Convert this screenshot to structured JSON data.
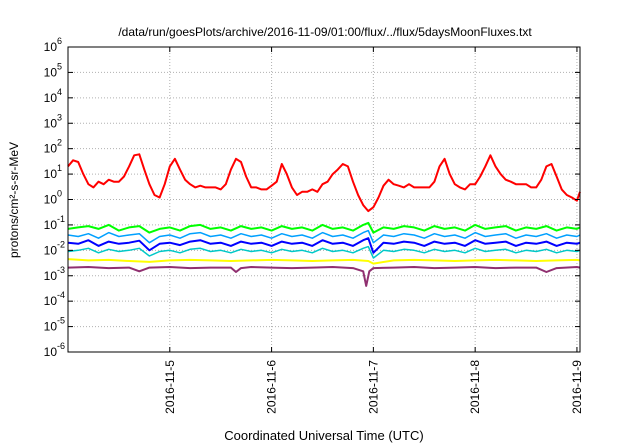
{
  "chart_data": {
    "type": "line",
    "title": "/data/run/goesPlots/archive/2016-11-09/01:00/flux/../flux/5daysMoonFluxes.txt",
    "xlabel": "Coordinated Universal Time (UTC)",
    "ylabel": "protons/cm²-s-sr-MeV",
    "y_scale": "log",
    "ylim": [
      1e-06,
      1000000.0
    ],
    "xlim": [
      0,
      5.03
    ],
    "x_unit": "days since 2016-11-04 00:00 UTC",
    "grid": true,
    "legend": "none",
    "y_ticks": [
      {
        "v": 1e-06,
        "base": "10",
        "exp": "-6"
      },
      {
        "v": 1e-05,
        "base": "10",
        "exp": "-5"
      },
      {
        "v": 0.0001,
        "base": "10",
        "exp": "-4"
      },
      {
        "v": 0.001,
        "base": "10",
        "exp": "-3"
      },
      {
        "v": 0.01,
        "base": "10",
        "exp": "-2"
      },
      {
        "v": 0.1,
        "base": "10",
        "exp": "-1"
      },
      {
        "v": 1,
        "base": "10",
        "exp": "0"
      },
      {
        "v": 10,
        "base": "10",
        "exp": "1"
      },
      {
        "v": 100,
        "base": "10",
        "exp": "2"
      },
      {
        "v": 1000,
        "base": "10",
        "exp": "3"
      },
      {
        "v": 10000,
        "base": "10",
        "exp": "4"
      },
      {
        "v": 100000,
        "base": "10",
        "exp": "5"
      },
      {
        "v": 1000000,
        "base": "10",
        "exp": "6"
      }
    ],
    "x_ticks": [
      {
        "v": 1,
        "label": "2016-11-5"
      },
      {
        "v": 2,
        "label": "2016-11-6"
      },
      {
        "v": 3,
        "label": "2016-11-7"
      },
      {
        "v": 4,
        "label": "2016-11-8"
      },
      {
        "v": 5,
        "label": "2016-11-9"
      }
    ],
    "series": [
      {
        "color": "#ff0000",
        "width": 2,
        "x": [
          0,
          0.05,
          0.1,
          0.15,
          0.2,
          0.25,
          0.3,
          0.35,
          0.4,
          0.45,
          0.5,
          0.55,
          0.6,
          0.65,
          0.7,
          0.75,
          0.8,
          0.85,
          0.9,
          0.95,
          1.0,
          1.05,
          1.1,
          1.15,
          1.2,
          1.25,
          1.3,
          1.35,
          1.4,
          1.45,
          1.5,
          1.55,
          1.6,
          1.65,
          1.7,
          1.75,
          1.8,
          1.85,
          1.9,
          1.95,
          2.0,
          2.05,
          2.1,
          2.15,
          2.2,
          2.25,
          2.3,
          2.35,
          2.4,
          2.45,
          2.5,
          2.55,
          2.6,
          2.65,
          2.7,
          2.75,
          2.8,
          2.85,
          2.9,
          2.95,
          3.0,
          3.05,
          3.1,
          3.15,
          3.2,
          3.25,
          3.3,
          3.35,
          3.4,
          3.45,
          3.5,
          3.55,
          3.6,
          3.65,
          3.7,
          3.75,
          3.8,
          3.85,
          3.9,
          3.95,
          4.0,
          4.05,
          4.1,
          4.15,
          4.2,
          4.25,
          4.3,
          4.35,
          4.4,
          4.45,
          4.5,
          4.55,
          4.6,
          4.65,
          4.7,
          4.75,
          4.8,
          4.85,
          4.9,
          4.95,
          5.0,
          5.03
        ],
        "y": [
          20,
          35,
          30,
          10,
          4,
          3,
          5,
          4,
          6,
          5,
          5,
          8,
          20,
          55,
          60,
          15,
          4,
          1.5,
          1.2,
          4,
          20,
          40,
          15,
          6,
          4,
          3,
          3.5,
          3,
          3,
          3,
          2.5,
          4,
          15,
          40,
          30,
          8,
          3,
          3,
          2.5,
          2.5,
          3.5,
          5,
          25,
          10,
          3,
          1.5,
          2,
          2,
          2.5,
          2,
          4,
          5,
          10,
          15,
          25,
          20,
          5,
          1.5,
          0.6,
          0.35,
          0.5,
          1.2,
          3.5,
          6,
          4,
          3.5,
          3,
          4,
          3,
          3,
          3,
          3,
          5,
          20,
          40,
          10,
          4,
          3,
          2.5,
          4,
          4,
          8,
          20,
          55,
          20,
          10,
          6,
          5,
          4,
          4,
          4,
          3,
          3,
          6,
          20,
          25,
          8,
          2.5,
          1.5,
          1.2,
          0.9,
          2
        ]
      },
      {
        "color": "#00ff00",
        "width": 2,
        "x": [
          0,
          0.1,
          0.2,
          0.3,
          0.4,
          0.5,
          0.6,
          0.7,
          0.8,
          0.9,
          1.0,
          1.1,
          1.2,
          1.3,
          1.4,
          1.5,
          1.6,
          1.7,
          1.8,
          1.9,
          2.0,
          2.1,
          2.2,
          2.3,
          2.4,
          2.5,
          2.6,
          2.7,
          2.8,
          2.9,
          2.95,
          3.0,
          3.1,
          3.2,
          3.3,
          3.4,
          3.5,
          3.6,
          3.7,
          3.8,
          3.9,
          4.0,
          4.1,
          4.2,
          4.3,
          4.4,
          4.5,
          4.6,
          4.7,
          4.8,
          4.9,
          5.0,
          5.03
        ],
        "y": [
          0.07,
          0.08,
          0.09,
          0.07,
          0.1,
          0.06,
          0.08,
          0.09,
          0.05,
          0.07,
          0.08,
          0.06,
          0.09,
          0.1,
          0.07,
          0.08,
          0.06,
          0.09,
          0.07,
          0.08,
          0.06,
          0.09,
          0.07,
          0.08,
          0.06,
          0.1,
          0.07,
          0.08,
          0.06,
          0.1,
          0.12,
          0.05,
          0.08,
          0.07,
          0.09,
          0.08,
          0.06,
          0.09,
          0.07,
          0.08,
          0.06,
          0.1,
          0.07,
          0.08,
          0.09,
          0.06,
          0.08,
          0.07,
          0.09,
          0.06,
          0.08,
          0.07,
          0.08
        ]
      },
      {
        "color": "#00a0ff",
        "width": 1.5,
        "x": [
          0,
          0.1,
          0.2,
          0.3,
          0.4,
          0.5,
          0.6,
          0.7,
          0.8,
          0.9,
          1.0,
          1.1,
          1.2,
          1.3,
          1.4,
          1.5,
          1.6,
          1.7,
          1.8,
          1.9,
          2.0,
          2.1,
          2.2,
          2.3,
          2.4,
          2.5,
          2.6,
          2.7,
          2.8,
          2.9,
          2.95,
          3.0,
          3.1,
          3.2,
          3.3,
          3.4,
          3.5,
          3.6,
          3.7,
          3.8,
          3.9,
          4.0,
          4.1,
          4.2,
          4.3,
          4.4,
          4.5,
          4.6,
          4.7,
          4.8,
          4.9,
          5.0,
          5.03
        ],
        "y": [
          0.04,
          0.035,
          0.045,
          0.03,
          0.05,
          0.035,
          0.04,
          0.045,
          0.02,
          0.035,
          0.04,
          0.03,
          0.045,
          0.05,
          0.035,
          0.04,
          0.03,
          0.045,
          0.035,
          0.04,
          0.03,
          0.045,
          0.035,
          0.04,
          0.03,
          0.05,
          0.035,
          0.04,
          0.03,
          0.05,
          0.06,
          0.02,
          0.04,
          0.035,
          0.045,
          0.04,
          0.03,
          0.045,
          0.035,
          0.04,
          0.03,
          0.05,
          0.035,
          0.04,
          0.045,
          0.03,
          0.04,
          0.035,
          0.045,
          0.03,
          0.04,
          0.035,
          0.04
        ]
      },
      {
        "color": "#0000ff",
        "width": 2,
        "x": [
          0,
          0.1,
          0.2,
          0.3,
          0.4,
          0.5,
          0.6,
          0.7,
          0.8,
          0.9,
          1.0,
          1.1,
          1.2,
          1.3,
          1.4,
          1.5,
          1.6,
          1.7,
          1.8,
          1.9,
          2.0,
          2.1,
          2.2,
          2.3,
          2.4,
          2.5,
          2.6,
          2.7,
          2.8,
          2.9,
          2.95,
          3.0,
          3.1,
          3.2,
          3.3,
          3.4,
          3.5,
          3.6,
          3.7,
          3.8,
          3.9,
          4.0,
          4.1,
          4.2,
          4.3,
          4.4,
          4.5,
          4.6,
          4.7,
          4.8,
          4.9,
          5.0,
          5.03
        ],
        "y": [
          0.02,
          0.018,
          0.025,
          0.015,
          0.022,
          0.018,
          0.02,
          0.024,
          0.01,
          0.018,
          0.02,
          0.016,
          0.022,
          0.025,
          0.018,
          0.02,
          0.015,
          0.022,
          0.018,
          0.02,
          0.015,
          0.022,
          0.018,
          0.02,
          0.015,
          0.025,
          0.018,
          0.02,
          0.015,
          0.025,
          0.03,
          0.008,
          0.02,
          0.018,
          0.022,
          0.02,
          0.015,
          0.022,
          0.018,
          0.02,
          0.015,
          0.025,
          0.018,
          0.02,
          0.022,
          0.015,
          0.02,
          0.018,
          0.022,
          0.015,
          0.02,
          0.018,
          0.02
        ]
      },
      {
        "color": "#00c8c8",
        "width": 1.5,
        "x": [
          0,
          0.1,
          0.2,
          0.3,
          0.4,
          0.5,
          0.6,
          0.7,
          0.8,
          0.9,
          1.0,
          1.1,
          1.2,
          1.3,
          1.4,
          1.5,
          1.6,
          1.7,
          1.8,
          1.9,
          2.0,
          2.1,
          2.2,
          2.3,
          2.4,
          2.5,
          2.6,
          2.7,
          2.8,
          2.9,
          2.95,
          3.0,
          3.1,
          3.2,
          3.3,
          3.4,
          3.5,
          3.6,
          3.7,
          3.8,
          3.9,
          4.0,
          4.1,
          4.2,
          4.3,
          4.4,
          4.5,
          4.6,
          4.7,
          4.8,
          4.9,
          5.0,
          5.03
        ],
        "y": [
          0.009,
          0.01,
          0.012,
          0.008,
          0.011,
          0.009,
          0.01,
          0.012,
          0.006,
          0.009,
          0.01,
          0.008,
          0.011,
          0.012,
          0.009,
          0.01,
          0.008,
          0.011,
          0.009,
          0.01,
          0.008,
          0.011,
          0.009,
          0.01,
          0.008,
          0.012,
          0.009,
          0.01,
          0.008,
          0.012,
          0.014,
          0.005,
          0.01,
          0.009,
          0.011,
          0.01,
          0.008,
          0.011,
          0.009,
          0.01,
          0.008,
          0.012,
          0.009,
          0.01,
          0.011,
          0.008,
          0.01,
          0.009,
          0.011,
          0.008,
          0.01,
          0.009,
          0.01
        ]
      },
      {
        "color": "#ffff00",
        "width": 2,
        "x": [
          0,
          0.2,
          0.4,
          0.6,
          0.8,
          1.0,
          1.2,
          1.4,
          1.6,
          1.8,
          2.0,
          2.2,
          2.4,
          2.6,
          2.8,
          2.95,
          3.0,
          3.2,
          3.4,
          3.6,
          3.8,
          4.0,
          4.2,
          4.4,
          4.6,
          4.8,
          5.0,
          5.03
        ],
        "y": [
          0.0045,
          0.004,
          0.0042,
          0.0038,
          0.0035,
          0.004,
          0.0042,
          0.004,
          0.0038,
          0.004,
          0.0042,
          0.004,
          0.0038,
          0.004,
          0.0042,
          0.0038,
          0.003,
          0.004,
          0.0042,
          0.004,
          0.0038,
          0.004,
          0.0042,
          0.004,
          0.0038,
          0.004,
          0.0042,
          0.004
        ]
      },
      {
        "color": "#903070",
        "width": 2,
        "x": [
          0,
          0.2,
          0.4,
          0.6,
          0.7,
          0.8,
          1.0,
          1.2,
          1.4,
          1.6,
          1.65,
          1.7,
          1.8,
          2.0,
          2.2,
          2.4,
          2.6,
          2.8,
          2.9,
          2.93,
          2.96,
          3.0,
          3.2,
          3.4,
          3.6,
          3.8,
          4.0,
          4.2,
          4.4,
          4.6,
          4.7,
          4.8,
          5.0,
          5.03
        ],
        "y": [
          0.0021,
          0.0022,
          0.002,
          0.0021,
          0.0015,
          0.0021,
          0.0022,
          0.002,
          0.0021,
          0.0021,
          0.0014,
          0.002,
          0.0022,
          0.0021,
          0.002,
          0.0021,
          0.0022,
          0.002,
          0.0015,
          0.0004,
          0.0015,
          0.002,
          0.0021,
          0.0022,
          0.002,
          0.0021,
          0.0022,
          0.002,
          0.0021,
          0.0021,
          0.0014,
          0.002,
          0.0022,
          0.0021
        ]
      }
    ]
  }
}
